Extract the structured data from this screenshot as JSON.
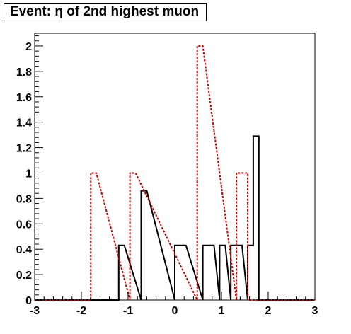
{
  "chart_data": {
    "type": "histogram",
    "title": "Event: η of 2nd highest muon",
    "xlabel": "",
    "ylabel": "",
    "xlim": [
      -3,
      3
    ],
    "ylim": [
      0,
      2.1
    ],
    "xticks": [
      "-3",
      "-2",
      "-1",
      "0",
      "1",
      "2",
      "3"
    ],
    "yticks": [
      "0",
      "0.2",
      "0.4",
      "0.6",
      "0.8",
      "1",
      "1.2",
      "1.4",
      "1.6",
      "1.8",
      "2"
    ],
    "bin_width": 0.12,
    "grid": false,
    "legend": "none",
    "series": [
      {
        "style": "solid",
        "color": "#000000",
        "bins": [
          {
            "x0": -1.2,
            "x1": -1.08,
            "y": 0.43
          },
          {
            "x0": -0.72,
            "x1": -0.6,
            "y": 0.86
          },
          {
            "x0": 0.0,
            "x1": 0.24,
            "y": 0.43
          },
          {
            "x0": 0.6,
            "x1": 0.84,
            "y": 0.43
          },
          {
            "x0": 0.96,
            "x1": 1.08,
            "y": 0.43
          },
          {
            "x0": 1.2,
            "x1": 1.44,
            "y": 0.43
          },
          {
            "x0": 1.56,
            "x1": 1.68,
            "y": 0.43
          },
          {
            "x0": 1.68,
            "x1": 1.8,
            "y": 1.29
          }
        ]
      },
      {
        "style": "dashed",
        "color": "#cc0000",
        "bins": [
          {
            "x0": -1.8,
            "x1": -1.68,
            "y": 1.0
          },
          {
            "x0": -0.96,
            "x1": -0.84,
            "y": 1.0
          },
          {
            "x0": 0.48,
            "x1": 0.6,
            "y": 2.0
          },
          {
            "x0": 1.32,
            "x1": 1.56,
            "y": 1.0
          }
        ]
      }
    ]
  }
}
